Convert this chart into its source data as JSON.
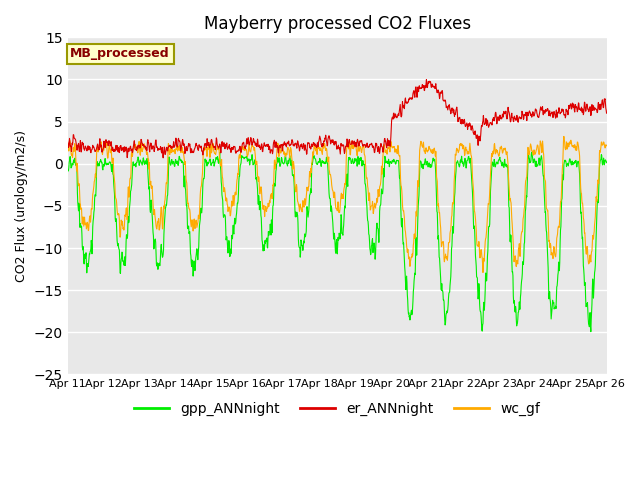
{
  "title": "Mayberry processed CO2 Fluxes",
  "ylabel": "CO2 Flux (urology/m2/s)",
  "ylim": [
    -25,
    15
  ],
  "yticks": [
    -25,
    -20,
    -15,
    -10,
    -5,
    0,
    5,
    10,
    15
  ],
  "n_points": 1440,
  "gpp_color": "#00ee00",
  "er_color": "#dd0000",
  "wc_color": "#ffaa00",
  "bg_color": "#e8e8e8",
  "legend_label": "MB_processed",
  "legend_text_color": "#880000",
  "legend_bg": "#ffffcc",
  "legend_edge": "#999900",
  "series_names": [
    "gpp_ANNnight",
    "er_ANNnight",
    "wc_gf"
  ],
  "line_width": 0.8,
  "figsize": [
    6.4,
    4.8
  ],
  "dpi": 100
}
